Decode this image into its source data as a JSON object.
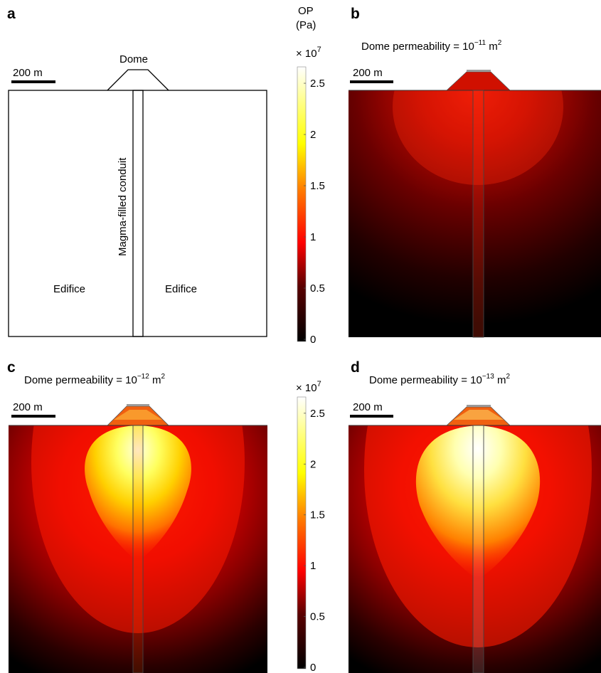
{
  "panel_a": {
    "letter": "a",
    "scale_bar": "200 m",
    "dome_label": "Dome",
    "conduit_label": "Magma-filled conduit",
    "edifice_left": "Edifice",
    "edifice_right": "Edifice"
  },
  "colorbar": {
    "title_line1": "OP",
    "title_line2": "(Pa)",
    "multiplier_base": "× 10",
    "multiplier_exp": "7",
    "ticks": [
      "2.5",
      "2",
      "1.5",
      "1",
      "0.5",
      "0"
    ],
    "colormap": "hot"
  },
  "panel_b": {
    "letter": "b",
    "scale_bar": "200 m",
    "title_prefix": "Dome permeability = 10",
    "title_exp": "−11",
    "title_unit": " m",
    "title_unit_exp": "2"
  },
  "panel_c": {
    "letter": "c",
    "scale_bar": "200 m",
    "title_prefix": "Dome permeability = 10",
    "title_exp": "−12",
    "title_unit": " m",
    "title_unit_exp": "2"
  },
  "panel_d": {
    "letter": "d",
    "scale_bar": "200 m",
    "title_prefix": "Dome permeability = 10",
    "title_exp": "−13",
    "title_unit": " m",
    "title_unit_exp": "2"
  }
}
